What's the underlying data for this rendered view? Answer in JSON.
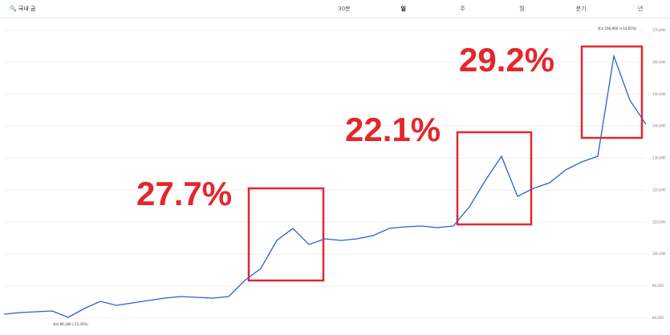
{
  "ui": {
    "search": "국내 금",
    "tabs": [
      "30분",
      "일",
      "주",
      "월",
      "분기",
      "년"
    ]
  },
  "chart_data": {
    "type": "line",
    "color": "#2b5fd9",
    "values": [
      81260,
      81760,
      82010,
      82260,
      80260,
      83010,
      85270,
      84020,
      84770,
      85520,
      86270,
      86770,
      86520,
      86270,
      86770,
      91790,
      95550,
      104320,
      108080,
      103070,
      104820,
      104320,
      104820,
      105820,
      108080,
      108580,
      108830,
      108330,
      108830,
      114850,
      123120,
      130640,
      118110,
      120610,
      122370,
      126380,
      128880,
      130640,
      161970,
      148190,
      140670
    ],
    "ylim": [
      78000,
      172000
    ],
    "yticks": [
      {
        "value": 80000,
        "label": "80,000"
      },
      {
        "value": 90000,
        "label": "90,000"
      },
      {
        "value": 100000,
        "label": "100,000"
      },
      {
        "value": 110000,
        "label": "110,000"
      },
      {
        "value": 120000,
        "label": "120,000"
      },
      {
        "value": 130000,
        "label": "130,000"
      },
      {
        "value": 140000,
        "label": "140,000"
      },
      {
        "value": 150000,
        "label": "150,000"
      },
      {
        "value": 160000,
        "label": "160,000"
      },
      {
        "value": 170000,
        "label": "170,000"
      }
    ],
    "grid": true,
    "annotations": [
      "27.7%",
      "22.1%",
      "29.2%",
      "최고 166,900 (+14.65%)",
      "최저 86,180 (-15.35%)"
    ]
  }
}
